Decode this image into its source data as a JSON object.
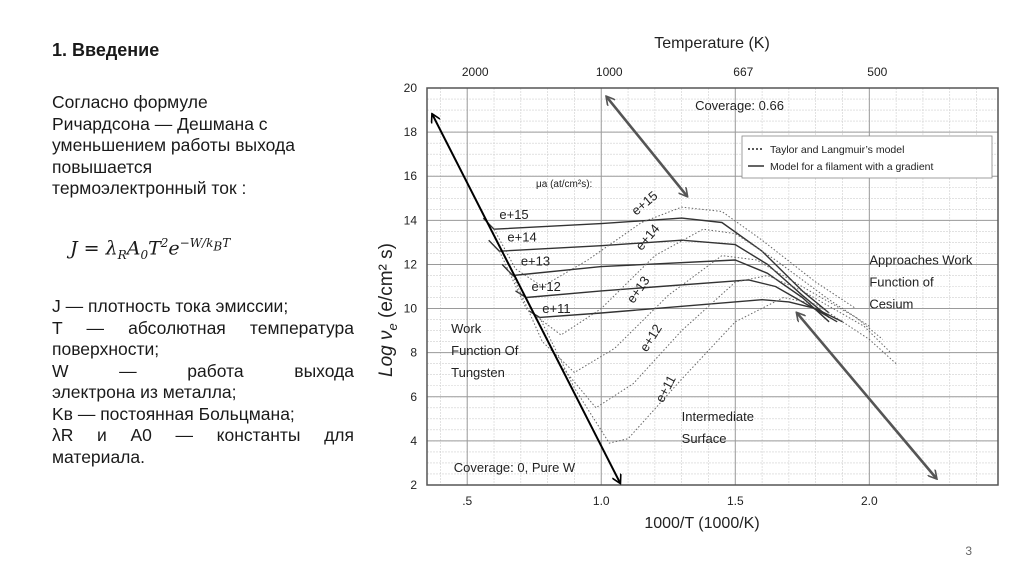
{
  "slide": {
    "title": "1. Введение",
    "intro_lines": [
      "Согласно формуле",
      "Ричардсона — Дешмана с",
      "уменьшением работы выхода",
      "повышается",
      "термоэлектронный ток :"
    ],
    "formula": {
      "lhs": "J = λ",
      "sub_r": "R",
      "a": "A",
      "sub_0": "0",
      "t": "T",
      "sup_2": "2",
      "e": "e",
      "exp": "−W/k",
      "exp_sub": "B",
      "exp_t": "T"
    },
    "definitions": [
      "J — плотность тока эмиссии;",
      "T — абсолютная температура",
      "поверхности;",
      "W — работа выхода",
      "электрона из металла;",
      "Kв — постоянная Больцмана;",
      "λR и A0 — константы для",
      "материала."
    ],
    "page_number": "3"
  },
  "chart_data": {
    "type": "line",
    "title": "Temperature (K)",
    "xlabel": "1000/T  (1000/K)",
    "ylabel": "Log ν",
    "ylabel_sub": "e",
    "ylabel_units": "(e/cm² s)",
    "xlim": [
      0.35,
      2.48
    ],
    "ylim": [
      2,
      20
    ],
    "x_ticks": [
      {
        "v": 0.5,
        "label": ".5"
      },
      {
        "v": 1.0,
        "label": "1.0"
      },
      {
        "v": 1.5,
        "label": "1.5"
      },
      {
        "v": 2.0,
        "label": "2.0"
      }
    ],
    "y_ticks": [
      2,
      4,
      6,
      8,
      10,
      12,
      14,
      16,
      18,
      20
    ],
    "top_ticks": [
      {
        "v": 0.5,
        "label": "2000"
      },
      {
        "v": 1.0,
        "label": "1000"
      },
      {
        "v": 1.5,
        "label": "667"
      },
      {
        "v": 2.0,
        "label": "500"
      }
    ],
    "grid": true,
    "legend": {
      "position": "top-right",
      "entries": [
        {
          "label": "Taylor and Langmuir’s model",
          "style": "dashed"
        },
        {
          "label": "Model for a filament with a gradient",
          "style": "solid"
        }
      ]
    },
    "series_header": "μa (at/cm²s):",
    "series": [
      {
        "name": "e+15",
        "style": "solid",
        "points": [
          [
            0.56,
            14.1
          ],
          [
            0.6,
            13.6
          ],
          [
            1.0,
            13.85
          ],
          [
            1.3,
            14.1
          ],
          [
            1.45,
            13.9
          ],
          [
            1.6,
            12.6
          ],
          [
            1.75,
            10.8
          ],
          [
            1.85,
            9.8
          ]
        ]
      },
      {
        "name": "e+14",
        "style": "solid",
        "points": [
          [
            0.58,
            13.1
          ],
          [
            0.62,
            12.6
          ],
          [
            1.0,
            12.85
          ],
          [
            1.3,
            13.1
          ],
          [
            1.5,
            12.9
          ],
          [
            1.62,
            12.0
          ],
          [
            1.75,
            10.6
          ],
          [
            1.85,
            9.6
          ]
        ]
      },
      {
        "name": "e+13",
        "style": "solid",
        "points": [
          [
            0.63,
            12.0
          ],
          [
            0.67,
            11.5
          ],
          [
            1.0,
            11.9
          ],
          [
            1.5,
            12.2
          ],
          [
            1.62,
            11.6
          ],
          [
            1.75,
            10.5
          ],
          [
            1.85,
            9.4
          ]
        ]
      },
      {
        "name": "e+12",
        "style": "solid",
        "points": [
          [
            0.68,
            10.8
          ],
          [
            0.72,
            10.5
          ],
          [
            1.0,
            10.8
          ],
          [
            1.55,
            11.3
          ],
          [
            1.65,
            11.0
          ],
          [
            1.75,
            10.3
          ],
          [
            1.88,
            9.4
          ]
        ]
      },
      {
        "name": "e+11",
        "style": "solid",
        "points": [
          [
            0.73,
            9.9
          ],
          [
            0.77,
            9.6
          ],
          [
            1.0,
            9.8
          ],
          [
            1.6,
            10.4
          ],
          [
            1.7,
            10.3
          ],
          [
            1.8,
            10.0
          ],
          [
            1.9,
            9.4
          ]
        ]
      },
      {
        "name": "e+15",
        "style": "dashed",
        "points": [
          [
            0.6,
            13.6
          ],
          [
            0.68,
            11.8
          ],
          [
            0.78,
            11.0
          ],
          [
            0.95,
            12.2
          ],
          [
            1.15,
            13.9
          ],
          [
            1.3,
            14.6
          ],
          [
            1.45,
            14.4
          ],
          [
            1.6,
            13.1
          ],
          [
            1.8,
            11.2
          ],
          [
            1.95,
            10.0
          ]
        ]
      },
      {
        "name": "e+14",
        "style": "dashed",
        "points": [
          [
            0.62,
            12.6
          ],
          [
            0.72,
            10.0
          ],
          [
            0.85,
            8.8
          ],
          [
            1.0,
            10.0
          ],
          [
            1.2,
            12.4
          ],
          [
            1.38,
            13.6
          ],
          [
            1.5,
            13.4
          ],
          [
            1.65,
            12.2
          ],
          [
            1.85,
            10.4
          ],
          [
            2.0,
            9.2
          ]
        ]
      },
      {
        "name": "e+13",
        "style": "dashed",
        "points": [
          [
            0.67,
            11.5
          ],
          [
            0.78,
            8.5
          ],
          [
            0.9,
            7.1
          ],
          [
            1.05,
            8.2
          ],
          [
            1.25,
            10.6
          ],
          [
            1.45,
            12.4
          ],
          [
            1.58,
            12.2
          ],
          [
            1.72,
            11.2
          ],
          [
            1.95,
            9.6
          ],
          [
            2.05,
            8.6
          ]
        ]
      },
      {
        "name": "e+12",
        "style": "dashed",
        "points": [
          [
            0.72,
            10.5
          ],
          [
            0.85,
            7.4
          ],
          [
            0.98,
            5.5
          ],
          [
            1.12,
            6.6
          ],
          [
            1.3,
            9.0
          ],
          [
            1.5,
            11.2
          ],
          [
            1.62,
            11.5
          ],
          [
            1.75,
            10.8
          ],
          [
            1.98,
            9.2
          ],
          [
            2.08,
            8.0
          ]
        ]
      },
      {
        "name": "e+11",
        "style": "dashed",
        "points": [
          [
            0.77,
            9.6
          ],
          [
            0.9,
            6.4
          ],
          [
            1.03,
            3.9
          ],
          [
            1.1,
            4.1
          ],
          [
            1.3,
            6.8
          ],
          [
            1.5,
            9.4
          ],
          [
            1.68,
            10.5
          ],
          [
            1.8,
            10.2
          ],
          [
            2.0,
            8.6
          ],
          [
            2.1,
            7.5
          ]
        ]
      }
    ],
    "annotations": [
      {
        "text": "Coverage: 0.66",
        "x": 1.35,
        "y": 19.0
      },
      {
        "text": "Approaches Work",
        "x": 2.0,
        "y": 12.0
      },
      {
        "text": "Function of",
        "x": 2.0,
        "y": 11.0
      },
      {
        "text": "Cesium",
        "x": 2.0,
        "y": 10.0
      },
      {
        "text": "Work",
        "x": 0.44,
        "y": 8.9
      },
      {
        "text": "Function Of",
        "x": 0.44,
        "y": 7.9
      },
      {
        "text": "Tungsten",
        "x": 0.44,
        "y": 6.9
      },
      {
        "text": "Intermediate",
        "x": 1.3,
        "y": 4.9
      },
      {
        "text": "Surface",
        "x": 1.3,
        "y": 3.9
      },
      {
        "text": "Coverage: 0, Pure W",
        "x": 0.45,
        "y": 2.6
      }
    ],
    "arrows": [
      {
        "from": [
          1.07,
          2.1
        ],
        "to": [
          0.37,
          18.8
        ],
        "color": "#000000"
      },
      {
        "from": [
          1.02,
          19.6
        ],
        "to": [
          1.32,
          15.1
        ],
        "color": "#555555"
      },
      {
        "from": [
          1.73,
          9.8
        ],
        "to": [
          2.25,
          2.3
        ],
        "color": "#555555"
      }
    ],
    "curve_labels": [
      {
        "text": "e+15",
        "x": 0.62,
        "y": 14.05,
        "rot": 0
      },
      {
        "text": "e+14",
        "x": 0.65,
        "y": 13.05,
        "rot": 0
      },
      {
        "text": "e+13",
        "x": 0.7,
        "y": 11.95,
        "rot": 0
      },
      {
        "text": "e+12",
        "x": 0.74,
        "y": 10.8,
        "rot": 0
      },
      {
        "text": "e+11",
        "x": 0.78,
        "y": 9.8,
        "rot": 0
      },
      {
        "text": "e+15",
        "x": 1.13,
        "y": 14.2,
        "rot": -40
      },
      {
        "text": "e+14",
        "x": 1.15,
        "y": 12.6,
        "rot": -50
      },
      {
        "text": "e+13",
        "x": 1.12,
        "y": 10.2,
        "rot": -55
      },
      {
        "text": "e+12",
        "x": 1.17,
        "y": 8.0,
        "rot": -58
      },
      {
        "text": "e+11",
        "x": 1.23,
        "y": 5.7,
        "rot": -62
      }
    ],
    "colors": {
      "solid": "#333333",
      "dashed": "#666666",
      "grid": "#9a9a9a"
    }
  }
}
